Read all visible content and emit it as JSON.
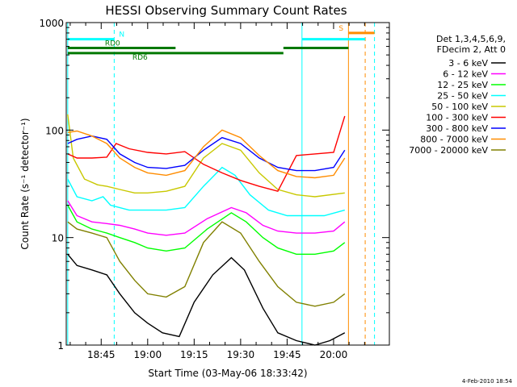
{
  "chart_data": {
    "type": "line",
    "title": "HESSI Observing Summary Count Rates",
    "xlabel": "Start Time (03-May-06 18:33:42)",
    "ylabel": "Count Rate (s⁻¹ detector⁻¹)",
    "y_scale": "log",
    "ylim": [
      1,
      1000
    ],
    "y_ticks": [
      {
        "value": 1,
        "label": "1"
      },
      {
        "value": 10,
        "label": "10"
      },
      {
        "value": 100,
        "label": "100"
      },
      {
        "value": 1000,
        "label": "1000"
      }
    ],
    "x_ticks": [
      "18:45",
      "19:00",
      "19:15",
      "19:30",
      "19:45",
      "20:00"
    ],
    "legend_header": [
      "Det 1,3,4,5,6,9,",
      "FDecim 2, Att 0"
    ],
    "legend_position": "right",
    "series": [
      {
        "name": "3 - 6 keV",
        "color": "#000000",
        "points": [
          [
            18.57,
            7
          ],
          [
            18.62,
            5.5
          ],
          [
            18.7,
            5
          ],
          [
            18.78,
            4.5
          ],
          [
            18.85,
            3
          ],
          [
            18.93,
            2
          ],
          [
            19.0,
            1.6
          ],
          [
            19.08,
            1.3
          ],
          [
            19.17,
            1.2
          ],
          [
            19.25,
            2.5
          ],
          [
            19.35,
            4.5
          ],
          [
            19.45,
            6.5
          ],
          [
            19.52,
            5
          ],
          [
            19.62,
            2.2
          ],
          [
            19.7,
            1.3
          ],
          [
            19.8,
            1.1
          ],
          [
            19.9,
            1
          ],
          [
            19.98,
            1.1
          ],
          [
            20.06,
            1.3
          ]
        ]
      },
      {
        "name": "6 - 12 keV",
        "color": "#ff00ff",
        "points": [
          [
            18.57,
            22
          ],
          [
            18.62,
            16
          ],
          [
            18.7,
            14
          ],
          [
            18.78,
            13.5
          ],
          [
            18.85,
            13
          ],
          [
            18.93,
            12
          ],
          [
            19.0,
            11
          ],
          [
            19.1,
            10.5
          ],
          [
            19.2,
            11
          ],
          [
            19.32,
            15
          ],
          [
            19.45,
            19
          ],
          [
            19.53,
            17
          ],
          [
            19.62,
            13
          ],
          [
            19.7,
            11.5
          ],
          [
            19.8,
            11
          ],
          [
            19.9,
            11
          ],
          [
            20.0,
            11.5
          ],
          [
            20.06,
            14
          ]
        ]
      },
      {
        "name": "12 - 25 keV",
        "color": "#00ff00",
        "points": [
          [
            18.57,
            20
          ],
          [
            18.62,
            14
          ],
          [
            18.7,
            12
          ],
          [
            18.78,
            11
          ],
          [
            18.85,
            10
          ],
          [
            18.93,
            9
          ],
          [
            19.0,
            8
          ],
          [
            19.1,
            7.5
          ],
          [
            19.2,
            8
          ],
          [
            19.32,
            12
          ],
          [
            19.45,
            17
          ],
          [
            19.53,
            14
          ],
          [
            19.62,
            10
          ],
          [
            19.7,
            8
          ],
          [
            19.8,
            7
          ],
          [
            19.9,
            7
          ],
          [
            20.0,
            7.5
          ],
          [
            20.06,
            9
          ]
        ]
      },
      {
        "name": "25 - 50 keV",
        "color": "#00ffff",
        "points": [
          [
            18.57,
            35
          ],
          [
            18.62,
            24
          ],
          [
            18.7,
            22
          ],
          [
            18.76,
            24
          ],
          [
            18.8,
            20
          ],
          [
            18.9,
            18
          ],
          [
            19.0,
            18
          ],
          [
            19.1,
            18
          ],
          [
            19.2,
            19
          ],
          [
            19.3,
            30
          ],
          [
            19.4,
            45
          ],
          [
            19.47,
            38
          ],
          [
            19.55,
            25
          ],
          [
            19.65,
            18
          ],
          [
            19.75,
            16
          ],
          [
            19.85,
            16
          ],
          [
            19.95,
            16
          ],
          [
            20.06,
            18
          ]
        ]
      },
      {
        "name": "50 - 100 keV",
        "color": "#c8c800",
        "points": [
          [
            18.57,
            140
          ],
          [
            18.6,
            55
          ],
          [
            18.66,
            35
          ],
          [
            18.73,
            31
          ],
          [
            18.78,
            30
          ],
          [
            18.85,
            28
          ],
          [
            18.93,
            26
          ],
          [
            19.0,
            26
          ],
          [
            19.1,
            27
          ],
          [
            19.2,
            30
          ],
          [
            19.3,
            55
          ],
          [
            19.4,
            75
          ],
          [
            19.5,
            65
          ],
          [
            19.6,
            40
          ],
          [
            19.7,
            28
          ],
          [
            19.8,
            25
          ],
          [
            19.9,
            24
          ],
          [
            20.06,
            26
          ]
        ]
      },
      {
        "name": "100 - 300 keV",
        "color": "#ff0000",
        "points": [
          [
            18.57,
            60
          ],
          [
            18.62,
            55
          ],
          [
            18.7,
            55
          ],
          [
            18.78,
            56
          ],
          [
            18.83,
            75
          ],
          [
            18.9,
            67
          ],
          [
            19.0,
            62
          ],
          [
            19.1,
            60
          ],
          [
            19.2,
            63
          ],
          [
            19.3,
            48
          ],
          [
            19.4,
            40
          ],
          [
            19.5,
            34
          ],
          [
            19.6,
            30
          ],
          [
            19.7,
            27
          ],
          [
            19.8,
            58
          ],
          [
            19.9,
            60
          ],
          [
            20.0,
            62
          ],
          [
            20.06,
            135
          ]
        ]
      },
      {
        "name": "300 - 800 keV",
        "color": "#0000ff",
        "points": [
          [
            18.57,
            75
          ],
          [
            18.62,
            82
          ],
          [
            18.7,
            88
          ],
          [
            18.78,
            82
          ],
          [
            18.85,
            60
          ],
          [
            18.93,
            50
          ],
          [
            19.0,
            45
          ],
          [
            19.1,
            44
          ],
          [
            19.2,
            47
          ],
          [
            19.3,
            65
          ],
          [
            19.4,
            85
          ],
          [
            19.5,
            75
          ],
          [
            19.6,
            55
          ],
          [
            19.7,
            45
          ],
          [
            19.8,
            42
          ],
          [
            19.9,
            42
          ],
          [
            20.0,
            45
          ],
          [
            20.06,
            65
          ]
        ]
      },
      {
        "name": "800 - 7000 keV",
        "color": "#ff8c00",
        "points": [
          [
            18.57,
            95
          ],
          [
            18.62,
            98
          ],
          [
            18.7,
            88
          ],
          [
            18.78,
            75
          ],
          [
            18.85,
            55
          ],
          [
            18.93,
            45
          ],
          [
            19.0,
            40
          ],
          [
            19.1,
            38
          ],
          [
            19.2,
            42
          ],
          [
            19.3,
            70
          ],
          [
            19.4,
            100
          ],
          [
            19.5,
            85
          ],
          [
            19.6,
            58
          ],
          [
            19.7,
            42
          ],
          [
            19.8,
            37
          ],
          [
            19.9,
            36
          ],
          [
            20.0,
            38
          ],
          [
            20.06,
            55
          ]
        ]
      },
      {
        "name": "7000 - 20000 keV",
        "color": "#808000",
        "points": [
          [
            18.57,
            14
          ],
          [
            18.62,
            12
          ],
          [
            18.7,
            11
          ],
          [
            18.78,
            10
          ],
          [
            18.85,
            6
          ],
          [
            18.93,
            4
          ],
          [
            19.0,
            3
          ],
          [
            19.1,
            2.8
          ],
          [
            19.2,
            3.5
          ],
          [
            19.3,
            9
          ],
          [
            19.4,
            14
          ],
          [
            19.5,
            11
          ],
          [
            19.6,
            6
          ],
          [
            19.7,
            3.5
          ],
          [
            19.8,
            2.5
          ],
          [
            19.9,
            2.3
          ],
          [
            20.0,
            2.5
          ],
          [
            20.06,
            3
          ]
        ]
      }
    ],
    "flags": [
      {
        "label": "N",
        "color": "#00ffff",
        "y": 700,
        "segments": [
          [
            18.57,
            18.82
          ]
        ]
      },
      {
        "label": "RD0",
        "color": "#007800",
        "y": 580,
        "segments": [
          [
            18.57,
            19.15
          ],
          [
            19.73,
            20.08
          ]
        ]
      },
      {
        "label": "RD6",
        "color": "#007800",
        "y": 520,
        "segments": [
          [
            18.57,
            19.73
          ]
        ]
      },
      {
        "label": "S",
        "color": "#ff8c00",
        "y": 800,
        "segments": [
          [
            20.08,
            20.22
          ]
        ]
      },
      {
        "label": "",
        "color": "#00ffff",
        "y": 700,
        "segments": [
          [
            19.83,
            20.17
          ]
        ]
      }
    ],
    "vertical_lines": [
      {
        "x": 18.57,
        "color": "#00ffff",
        "dashed": false
      },
      {
        "x": 18.82,
        "color": "#00ffff",
        "dashed": true
      },
      {
        "x": 19.83,
        "color": "#00ffff",
        "dashed": false
      },
      {
        "x": 20.08,
        "color": "#ff8c00",
        "dashed": false
      },
      {
        "x": 20.17,
        "color": "#ff8c00",
        "dashed": true
      },
      {
        "x": 20.22,
        "color": "#00ffff",
        "dashed": true
      }
    ]
  },
  "timestamp": "4-Feb-2010 18:54"
}
